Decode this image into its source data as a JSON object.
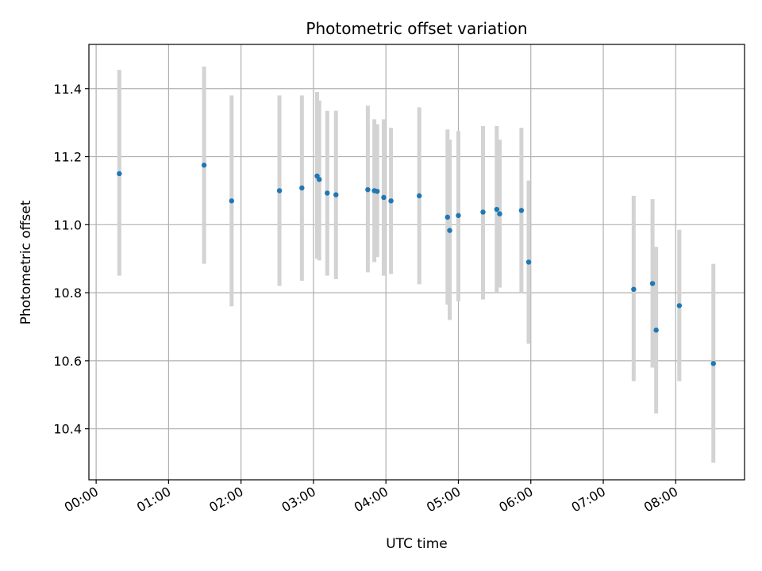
{
  "chart_data": {
    "type": "scatter",
    "title": "Photometric offset variation",
    "xlabel": "UTC time",
    "ylabel": "Photometric offset",
    "x_unit": "hour",
    "xlim": [
      -0.1,
      8.95
    ],
    "ylim": [
      10.25,
      11.53
    ],
    "x_ticks": [
      0,
      1,
      2,
      3,
      4,
      5,
      6,
      7,
      8
    ],
    "x_tick_labels": [
      "00:00",
      "01:00",
      "02:00",
      "03:00",
      "04:00",
      "05:00",
      "06:00",
      "07:00",
      "08:00"
    ],
    "y_ticks": [
      10.4,
      10.6,
      10.8,
      11.0,
      11.2,
      11.4
    ],
    "y_tick_labels": [
      "10.4",
      "10.6",
      "10.8",
      "11.0",
      "11.2",
      "11.4"
    ],
    "grid": true,
    "point_color": "#1f77b4",
    "errorbar_color": "#d3d3d3",
    "points": [
      {
        "x": 0.32,
        "y": 11.15,
        "low": 10.85,
        "high": 11.455
      },
      {
        "x": 1.49,
        "y": 11.175,
        "low": 10.885,
        "high": 11.465
      },
      {
        "x": 1.87,
        "y": 11.07,
        "low": 10.76,
        "high": 11.38
      },
      {
        "x": 2.53,
        "y": 11.1,
        "low": 10.82,
        "high": 11.38
      },
      {
        "x": 2.84,
        "y": 11.108,
        "low": 10.835,
        "high": 11.38
      },
      {
        "x": 3.05,
        "y": 11.143,
        "low": 10.9,
        "high": 11.39
      },
      {
        "x": 3.08,
        "y": 11.133,
        "low": 10.895,
        "high": 11.365
      },
      {
        "x": 3.19,
        "y": 11.093,
        "low": 10.85,
        "high": 11.335
      },
      {
        "x": 3.31,
        "y": 11.088,
        "low": 10.84,
        "high": 11.335
      },
      {
        "x": 3.75,
        "y": 11.103,
        "low": 10.86,
        "high": 11.35
      },
      {
        "x": 3.84,
        "y": 11.1,
        "low": 10.89,
        "high": 11.31
      },
      {
        "x": 3.88,
        "y": 11.098,
        "low": 10.905,
        "high": 11.295
      },
      {
        "x": 3.97,
        "y": 11.08,
        "low": 10.85,
        "high": 11.31
      },
      {
        "x": 4.07,
        "y": 11.07,
        "low": 10.855,
        "high": 11.285
      },
      {
        "x": 4.46,
        "y": 11.085,
        "low": 10.825,
        "high": 11.345
      },
      {
        "x": 4.85,
        "y": 11.022,
        "low": 10.765,
        "high": 11.28
      },
      {
        "x": 4.88,
        "y": 10.983,
        "low": 10.72,
        "high": 11.25
      },
      {
        "x": 5.0,
        "y": 11.027,
        "low": 10.775,
        "high": 11.275
      },
      {
        "x": 5.34,
        "y": 11.037,
        "low": 10.78,
        "high": 11.29
      },
      {
        "x": 5.53,
        "y": 11.045,
        "low": 10.8,
        "high": 11.29
      },
      {
        "x": 5.57,
        "y": 11.032,
        "low": 10.815,
        "high": 11.25
      },
      {
        "x": 5.87,
        "y": 11.042,
        "low": 10.8,
        "high": 11.285
      },
      {
        "x": 5.97,
        "y": 10.89,
        "low": 10.65,
        "high": 11.13
      },
      {
        "x": 7.42,
        "y": 10.81,
        "low": 10.54,
        "high": 11.085
      },
      {
        "x": 7.68,
        "y": 10.827,
        "low": 10.58,
        "high": 11.075
      },
      {
        "x": 7.73,
        "y": 10.69,
        "low": 10.445,
        "high": 10.935
      },
      {
        "x": 8.05,
        "y": 10.762,
        "low": 10.54,
        "high": 10.985
      },
      {
        "x": 8.52,
        "y": 10.592,
        "low": 10.3,
        "high": 10.885
      }
    ]
  }
}
